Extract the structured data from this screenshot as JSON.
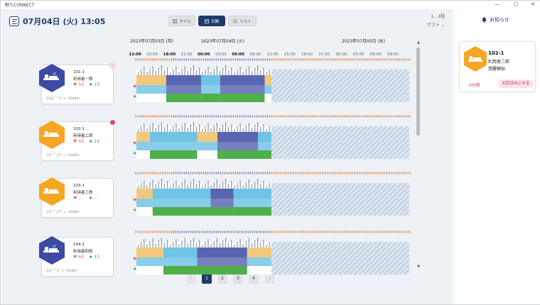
{
  "window": {
    "title": "眠りCONNECT",
    "controls": [
      "—",
      "▢",
      "✕"
    ]
  },
  "header": {
    "date": "07月04日 (火) 13:05",
    "views": [
      {
        "label": "タイル",
        "icon": "grid-icon",
        "active": false
      },
      {
        "label": "日間",
        "icon": "calendar-icon",
        "active": true
      },
      {
        "label": "リスト",
        "icon": "list-icon",
        "active": false
      }
    ],
    "floor": "1、2階",
    "user": "ゲスト"
  },
  "timeline": {
    "days": [
      "2023年07月03日 (月)",
      "2023年07月04日 (火)",
      "2023年07月05日 (水)"
    ],
    "hours": [
      "12:00",
      "15:00",
      "18:00",
      "21:00",
      "00:00",
      "03:00",
      "06:00",
      "09:00",
      "12:00",
      "15:00",
      "18:00",
      "21:00",
      "00:00",
      "03:00",
      "06:00",
      "09:00"
    ],
    "strong_hours": [
      "12:00",
      "18:00",
      "00:00",
      "06:00"
    ]
  },
  "residents": [
    {
      "room": "101-1",
      "name": "利用者一郎",
      "state": "sleep",
      "hr": "55",
      "rr": "13",
      "meta": "43分  ⌒ 5°  ≈ -50dBm",
      "badge": "x",
      "segments": [
        [
          0,
          0.22,
          "awake"
        ],
        [
          0.22,
          0.48,
          "deep"
        ],
        [
          0.48,
          0.62,
          "light"
        ],
        [
          0.62,
          0.95,
          "deep"
        ],
        [
          0.95,
          1,
          "awake"
        ]
      ]
    },
    {
      "room": "102-1",
      "name": "利用者二郎",
      "state": "bed",
      "hr": "68",
      "rr": "14",
      "meta": "7分  ⌒ 27°  ≈ -50dBm",
      "badge": "alert",
      "segments": [
        [
          0,
          0.1,
          "awake"
        ],
        [
          0.1,
          0.45,
          "light"
        ],
        [
          0.45,
          0.6,
          "awake"
        ],
        [
          0.6,
          0.9,
          "deep"
        ],
        [
          0.9,
          1,
          "light"
        ]
      ]
    },
    {
      "room": "103-1",
      "name": "利用者三郎",
      "state": "bed",
      "hr": "--",
      "rr": "--",
      "meta": "1分  ⌒ 27°  ≈ -50dBm",
      "badge": "",
      "segments": [
        [
          0,
          0.12,
          "awake"
        ],
        [
          0.12,
          0.55,
          "light"
        ],
        [
          0.55,
          0.72,
          "deep"
        ],
        [
          0.72,
          1,
          "light"
        ]
      ]
    },
    {
      "room": "104-1",
      "name": "利用者四郎",
      "state": "sleep",
      "hr": "68",
      "rr": "13",
      "meta": "1分  ⌒ 0°  ≈ -50dBm",
      "badge": "",
      "segments": [
        [
          0,
          0.2,
          "awake"
        ],
        [
          0.2,
          0.45,
          "light"
        ],
        [
          0.45,
          0.82,
          "deep"
        ],
        [
          0.82,
          1,
          "awake"
        ]
      ]
    }
  ],
  "pagination": {
    "prev": "‹",
    "next": "›",
    "pages": [
      "1",
      "2",
      "3",
      "4"
    ],
    "current": "1"
  },
  "notices": {
    "title": "お知らせ",
    "items": [
      {
        "room": "102-1",
        "name": "利用者二郎",
        "event": "覚醒検知",
        "ago": "0分前",
        "action": "対応済みにする"
      }
    ]
  },
  "colors": {
    "navy": "#1d3b6a",
    "sleep_hex": "#3c4aa3",
    "bed_hex": "#f5a623",
    "awake": "#f0c064",
    "light": "#56b8e0",
    "deep": "#3c4aa3",
    "green": "#4fb04a",
    "heart": "#e06a7a"
  }
}
